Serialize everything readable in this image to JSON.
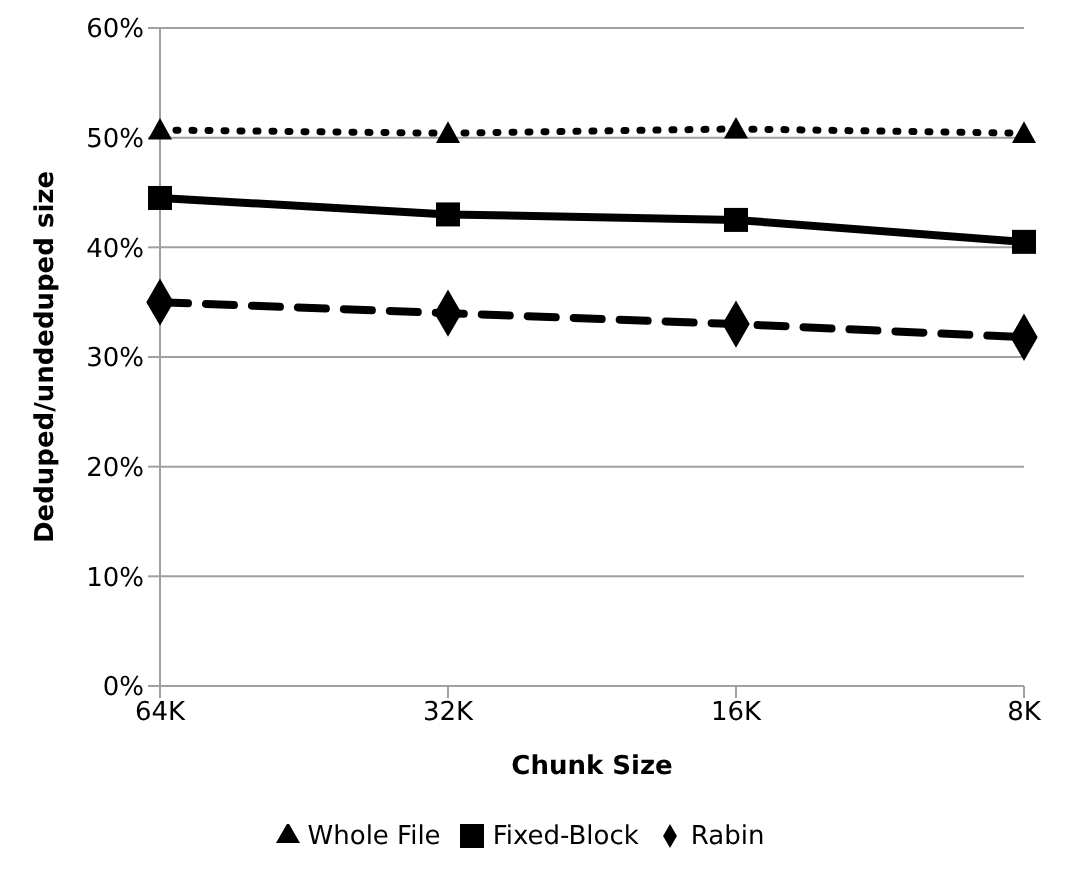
{
  "chart_data": {
    "type": "line",
    "xlabel": "Chunk Size",
    "ylabel": "Deduped/undeduped size",
    "categories": [
      "64K",
      "32K",
      "16K",
      "8K"
    ],
    "series": [
      {
        "name": "Whole File",
        "color": "#000000",
        "values": [
          50.7,
          50.4,
          50.8,
          50.4
        ],
        "marker": "triangle",
        "line_style": "dotted"
      },
      {
        "name": "Fixed-Block",
        "color": "#000000",
        "values": [
          44.5,
          43,
          42.5,
          40.5
        ],
        "marker": "square",
        "line_style": "solid"
      },
      {
        "name": "Rabin",
        "color": "#000000",
        "values": [
          35,
          34,
          33,
          31.8
        ],
        "marker": "diamond",
        "line_style": "dashed"
      }
    ],
    "ylim": [
      0,
      60
    ],
    "yticks": [
      {
        "value": 0,
        "label": "0%"
      },
      {
        "value": 10,
        "label": "10%"
      },
      {
        "value": 20,
        "label": "20%"
      },
      {
        "value": 30,
        "label": "30%"
      },
      {
        "value": 40,
        "label": "40%"
      },
      {
        "value": 50,
        "label": "50%"
      },
      {
        "value": 60,
        "label": "60%"
      }
    ],
    "grid": "y",
    "legend": "bottom"
  }
}
